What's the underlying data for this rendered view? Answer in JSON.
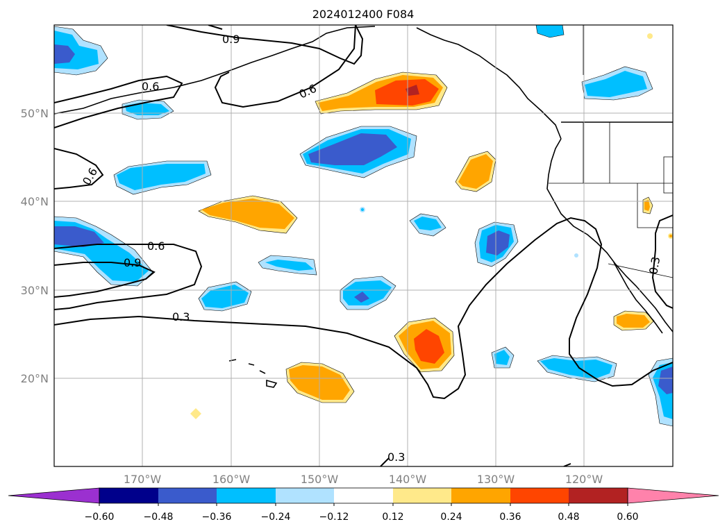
{
  "title": "2024012400 F084",
  "map": {
    "lat_labels": [
      "50°N",
      "40°N",
      "30°N",
      "20°N"
    ],
    "lon_labels": [
      "170°W",
      "160°W",
      "150°W",
      "140°W",
      "130°W",
      "120°W"
    ],
    "axis_label_color": "#808080"
  },
  "contours": {
    "labels": [
      "0.9",
      "0.6",
      "0.6",
      "0.6",
      "0.6",
      "0.9",
      "0.3",
      "0.3",
      "0.3"
    ]
  },
  "colorbar": {
    "ticks": [
      "−0.60",
      "−0.48",
      "−0.36",
      "−0.24",
      "−0.12",
      "0.12",
      "0.24",
      "0.36",
      "0.48",
      "0.60"
    ],
    "colors": [
      "#9b30d0",
      "#00008b",
      "#3a5bcc",
      "#00bfff",
      "#b0e2ff",
      "#ffffff",
      "#ffe98a",
      "#ffa500",
      "#ff4500",
      "#b22222",
      "#ff82ab"
    ]
  }
}
